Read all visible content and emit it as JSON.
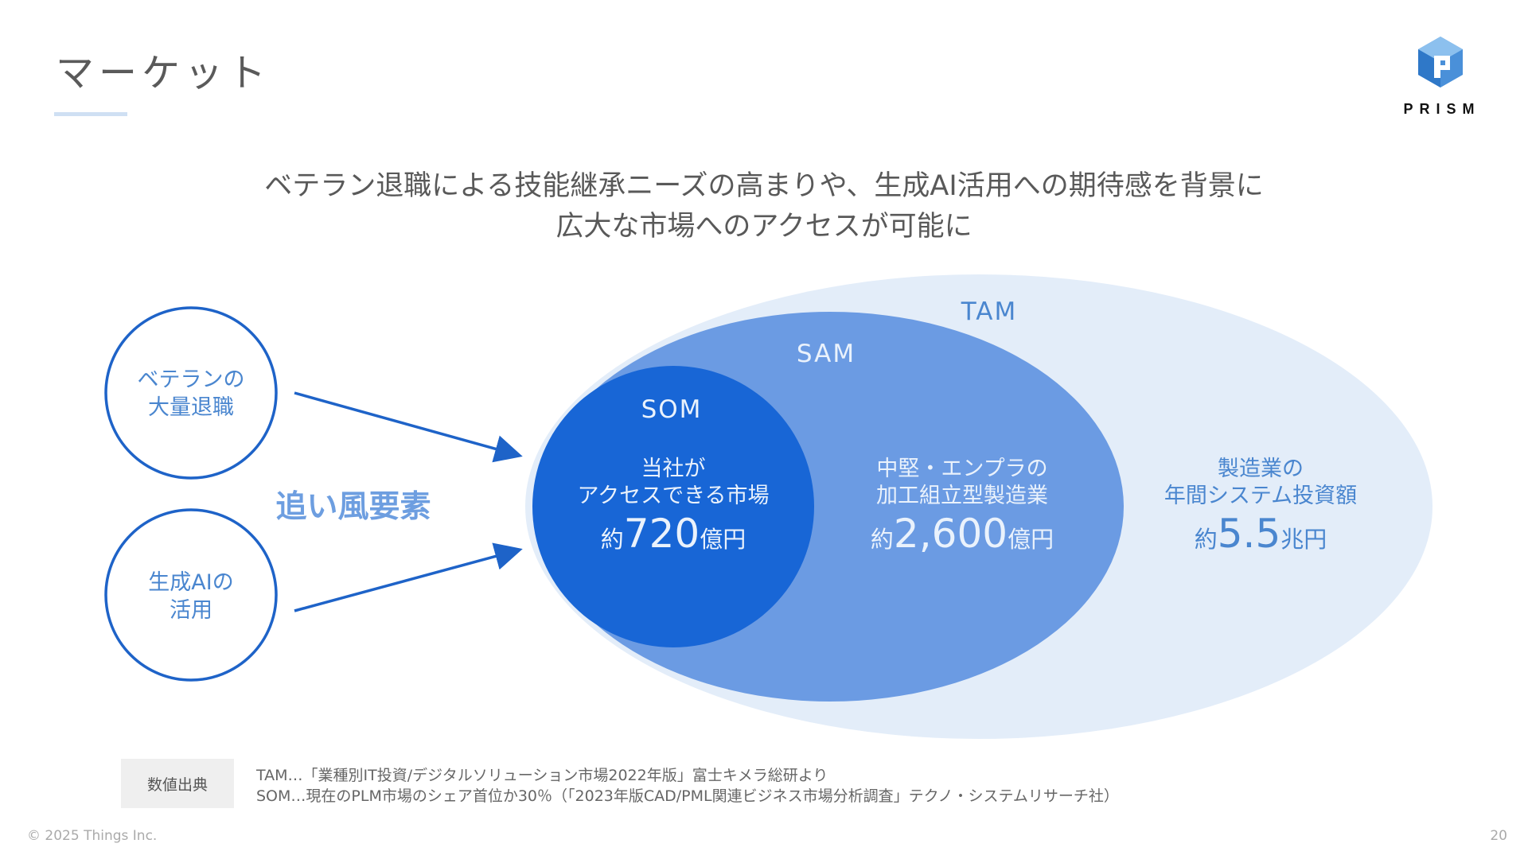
{
  "header": {
    "title": "マーケット",
    "logo_text": "PRISM"
  },
  "headline": {
    "line1": "ベテラン退職による技能継承ニーズの高まりや、生成AI活用への期待感を背景に",
    "line2": "広大な市場へのアクセスが可能に"
  },
  "drivers": {
    "label": "追い風要素",
    "items": [
      {
        "line1": "ベテランの",
        "line2": "大量退職"
      },
      {
        "line1": "生成AIの",
        "line2": "活用"
      }
    ]
  },
  "market": {
    "tam": {
      "label": "TAM",
      "desc1": "製造業の",
      "desc2": "年間システム投資額",
      "prefix": "約",
      "value": "5.5",
      "unit": "兆円",
      "color": "#e3edf9"
    },
    "sam": {
      "label": "SAM",
      "desc1": "中堅・エンプラの",
      "desc2": "加工組立型製造業",
      "prefix": "約",
      "value": "2,600",
      "unit": "億円",
      "color": "#6b9be3"
    },
    "som": {
      "label": "SOM",
      "desc1": "当社が",
      "desc2": "アクセスできる市場",
      "prefix": "約",
      "value": "720",
      "unit": "億円",
      "color": "#1866d6"
    }
  },
  "sources": {
    "label": "数値出典",
    "lines": [
      "TAM…「業種別IT投資/デジタルソリューション市場2022年版」富士キメラ総研より",
      "SOM…現在のPLM市場のシェア首位か30％（「2023年版CAD/PML関連ビジネス市場分析調査」テクノ・システムリサーチ社）"
    ]
  },
  "footer": {
    "copyright": "© 2025 Things Inc.",
    "page_number": "20"
  },
  "colors": {
    "accent_blue": "#1e63c8",
    "driver_text": "#4a86cf",
    "driver_label": "#6d9ee0",
    "tam_text": "#4a86cf",
    "light_text": "#eaf2fc"
  }
}
